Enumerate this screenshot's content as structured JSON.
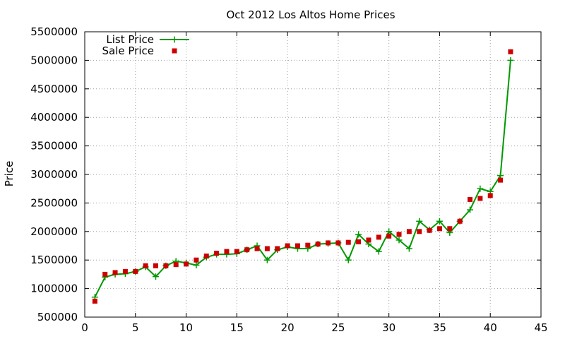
{
  "chart_data": {
    "type": "line",
    "title": "Oct 2012 Los Altos Home Prices",
    "xlabel": "",
    "ylabel": "Price",
    "xlim": [
      0,
      45
    ],
    "ylim": [
      500000,
      5500000
    ],
    "x_ticks": [
      0,
      5,
      10,
      15,
      20,
      25,
      30,
      35,
      40,
      45
    ],
    "y_ticks": [
      500000,
      1000000,
      1500000,
      2000000,
      2500000,
      3000000,
      3500000,
      4000000,
      4500000,
      5000000,
      5500000
    ],
    "grid": true,
    "legend_position": "top-left",
    "series": [
      {
        "name": "List Price",
        "style": "lines+points",
        "marker": "plus",
        "color": "#009900",
        "x": [
          1,
          2,
          3,
          4,
          5,
          6,
          7,
          8,
          9,
          10,
          11,
          12,
          13,
          14,
          15,
          16,
          17,
          18,
          19,
          20,
          21,
          22,
          23,
          24,
          25,
          26,
          27,
          28,
          29,
          30,
          31,
          32,
          33,
          34,
          35,
          36,
          37,
          38,
          39,
          40,
          41,
          42
        ],
        "y": [
          850000,
          1200000,
          1250000,
          1260000,
          1300000,
          1380000,
          1210000,
          1400000,
          1480000,
          1450000,
          1410000,
          1550000,
          1600000,
          1600000,
          1610000,
          1680000,
          1750000,
          1500000,
          1680000,
          1730000,
          1700000,
          1700000,
          1780000,
          1790000,
          1800000,
          1500000,
          1950000,
          1780000,
          1650000,
          2000000,
          1850000,
          1700000,
          2180000,
          2030000,
          2180000,
          1980000,
          2180000,
          2380000,
          2750000,
          2700000,
          2980000,
          5000000
        ]
      },
      {
        "name": "Sale Price",
        "style": "points",
        "marker": "square",
        "color": "#cc0000",
        "x": [
          1,
          2,
          3,
          4,
          5,
          6,
          7,
          8,
          9,
          10,
          11,
          12,
          13,
          14,
          15,
          16,
          17,
          18,
          19,
          20,
          21,
          22,
          23,
          24,
          25,
          26,
          27,
          28,
          29,
          30,
          31,
          32,
          33,
          34,
          35,
          36,
          37,
          38,
          39,
          40,
          41,
          42
        ],
        "y": [
          780000,
          1250000,
          1280000,
          1300000,
          1300000,
          1400000,
          1400000,
          1400000,
          1420000,
          1430000,
          1500000,
          1570000,
          1620000,
          1650000,
          1650000,
          1680000,
          1700000,
          1700000,
          1700000,
          1750000,
          1750000,
          1760000,
          1780000,
          1800000,
          1800000,
          1810000,
          1820000,
          1850000,
          1900000,
          1920000,
          1950000,
          2000000,
          2000000,
          2020000,
          2050000,
          2050000,
          2180000,
          2560000,
          2580000,
          2630000,
          2900000,
          5150000
        ]
      }
    ]
  }
}
